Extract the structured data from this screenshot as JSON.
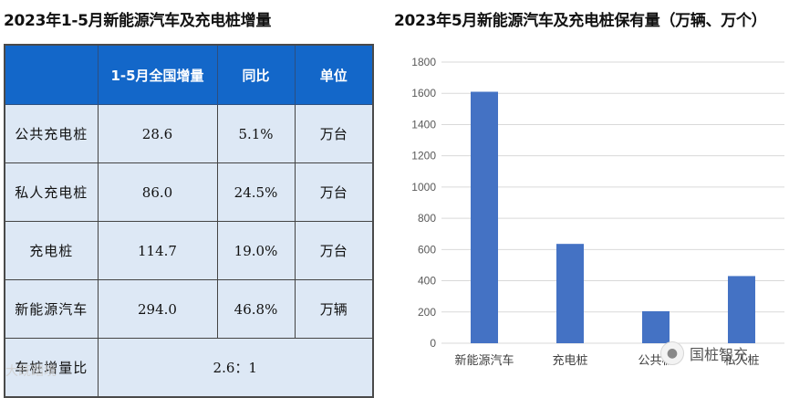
{
  "left": {
    "title": "2023年1-5月新能源汽车及充电桩增量",
    "table": {
      "headers": [
        "",
        "1-5月全国增量",
        "同比",
        "单位"
      ],
      "rows": [
        [
          "公共充电桩",
          "28.6",
          "5.1%",
          "万台"
        ],
        [
          "私人充电桩",
          "86.0",
          "24.5%",
          "万台"
        ],
        [
          "充电桩",
          "114.7",
          "19.0%",
          "万台"
        ],
        [
          "新能源汽车",
          "294.0",
          "46.8%",
          "万辆"
        ]
      ],
      "ratio_label": "车桩增量比",
      "ratio_value": "2.6：1"
    }
  },
  "chart_data": {
    "type": "bar",
    "title": "2023年5月新能源汽车及充电桩保有量（万辆、万个）",
    "categories": [
      "新能源汽车",
      "充电桩",
      "公共桩",
      "私人桩"
    ],
    "values": [
      1610,
      636,
      205,
      430
    ],
    "ylim": [
      0,
      1800
    ],
    "yticks": [
      0,
      200,
      400,
      600,
      800,
      1000,
      1200,
      1400,
      1600,
      1800
    ],
    "grid": true,
    "bar_color": "#4472c4"
  },
  "watermarks": {
    "left": "大既踏境",
    "right": "国桩智充",
    "right_icon": "wechat-icon"
  }
}
